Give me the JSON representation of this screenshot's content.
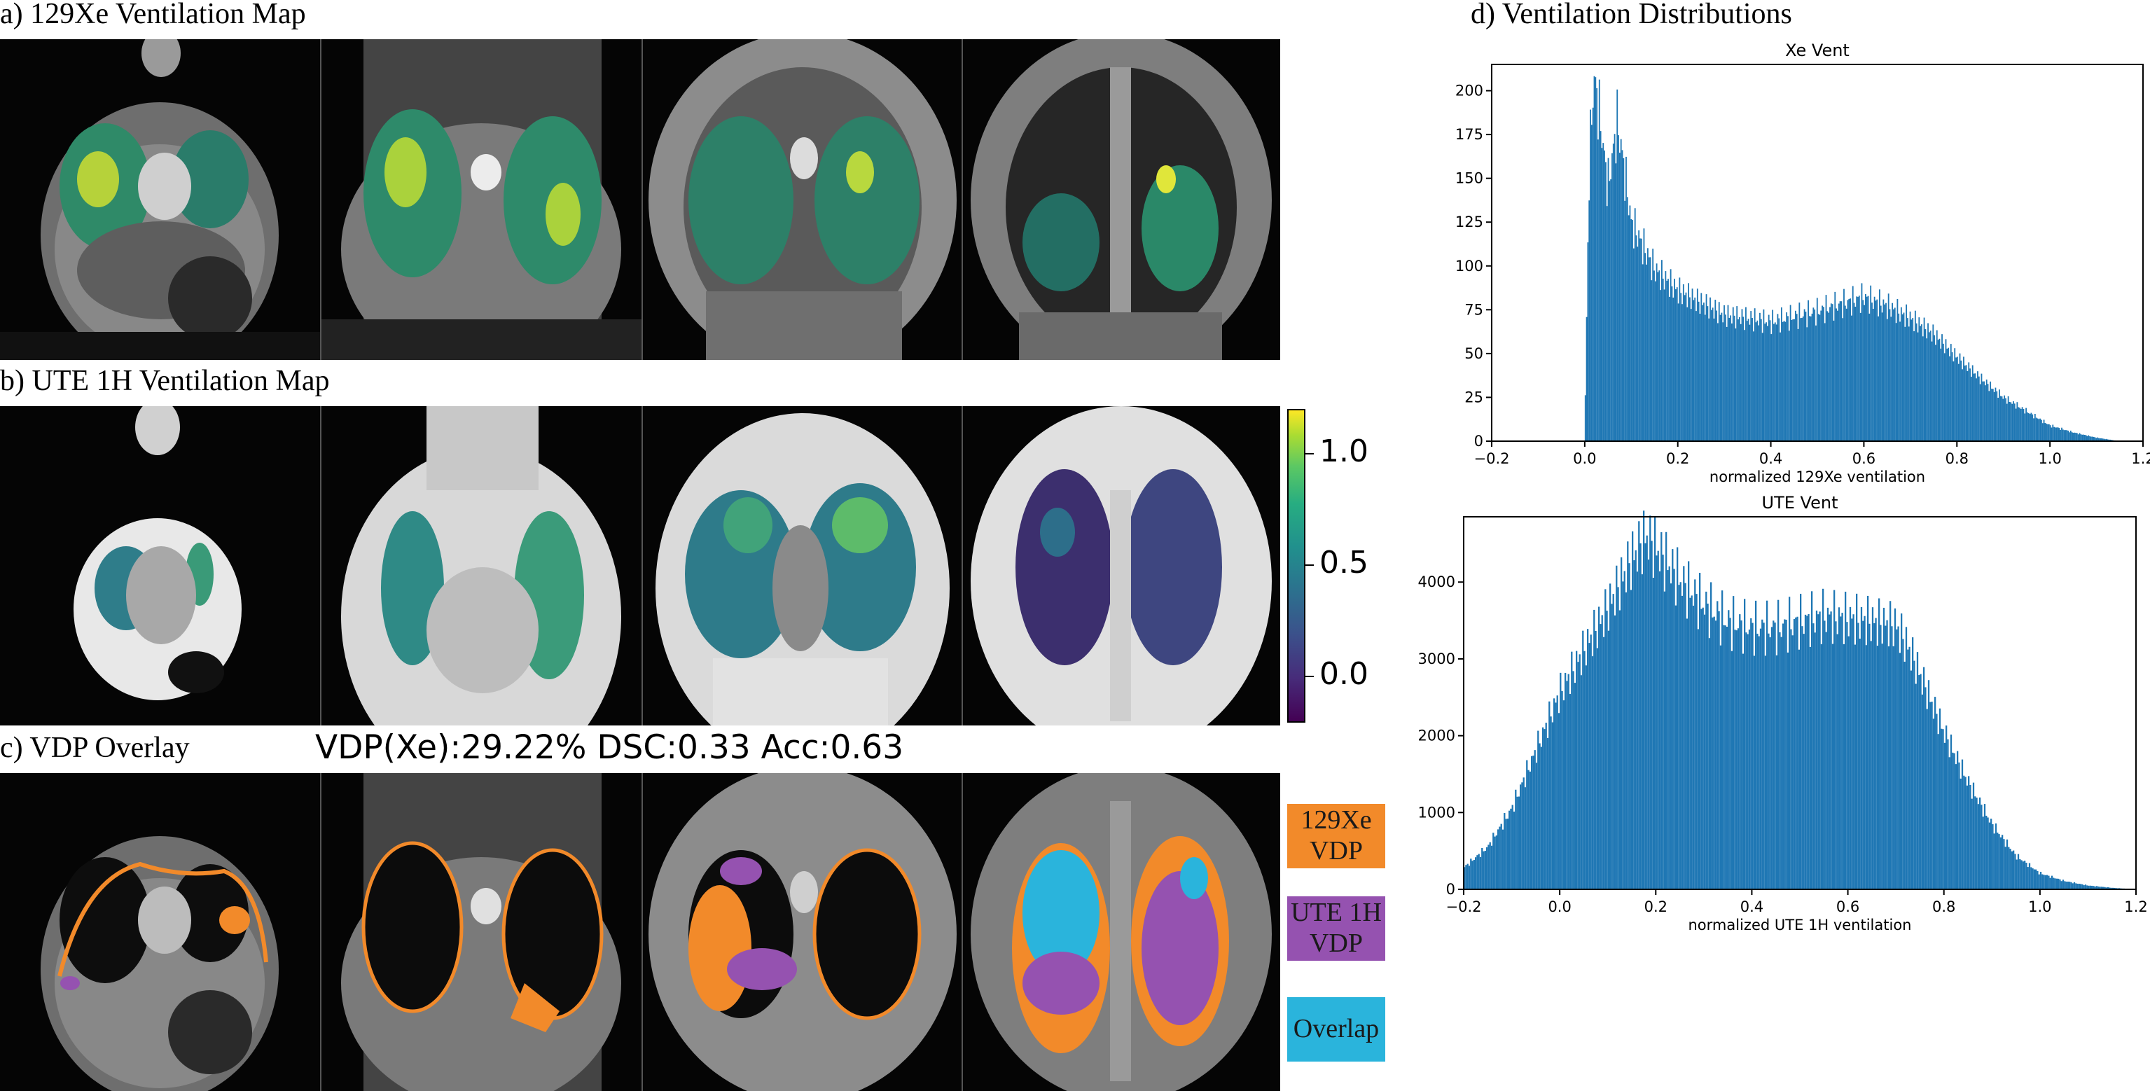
{
  "panels": {
    "a": {
      "title": "a) 129Xe Ventilation Map"
    },
    "b": {
      "title": "b) UTE 1H Ventilation Map"
    },
    "c": {
      "title": "c) VDP Overlay",
      "stats": "VDP(Xe):29.22% DSC:0.33 Acc:0.63"
    },
    "d": {
      "title": "d) Ventilation Distributions"
    }
  },
  "colorbar": {
    "ticks": [
      "1.0",
      "0.5",
      "0.0"
    ],
    "tick_values": [
      1.0,
      0.5,
      0.0
    ],
    "range": [
      -0.2,
      1.2
    ],
    "colormap": "viridis"
  },
  "legend": [
    {
      "label": "129Xe VDP",
      "lines": [
        "129Xe",
        "VDP"
      ],
      "color": "#f28a2a"
    },
    {
      "label": "UTE 1H VDP",
      "lines": [
        "UTE 1H",
        "VDP"
      ],
      "color": "#9552b0"
    },
    {
      "label": "Overlap",
      "lines": [
        "Overlap"
      ],
      "color": "#2ab4dc"
    }
  ],
  "colors": {
    "bars": "#1f77b4",
    "xe_vdp": "#f28a2a",
    "ute_vdp": "#9552b0",
    "overlap": "#2ab4dc"
  },
  "chart_data": [
    {
      "type": "bar",
      "title": "Xe Vent",
      "xlabel": "normalized 129Xe ventilation",
      "ylabel": "",
      "xlim": [
        -0.2,
        1.2
      ],
      "ylim": [
        0,
        215
      ],
      "xticks": [
        -0.2,
        0.0,
        0.2,
        0.4,
        0.6,
        0.8,
        1.0,
        1.2
      ],
      "xtick_labels": [
        "−0.2",
        "0.0",
        "0.2",
        "0.4",
        "0.6",
        "0.8",
        "1.0",
        "1.2"
      ],
      "yticks": [
        0,
        25,
        50,
        75,
        100,
        125,
        150,
        175,
        200
      ],
      "ytick_labels": [
        "0",
        "25",
        "50",
        "75",
        "100",
        "125",
        "150",
        "175",
        "200"
      ],
      "profile": {
        "x": [
          0.0,
          0.01,
          0.02,
          0.03,
          0.05,
          0.07,
          0.08,
          0.1,
          0.15,
          0.2,
          0.3,
          0.4,
          0.5,
          0.55,
          0.6,
          0.65,
          0.7,
          0.75,
          0.8,
          0.85,
          0.9,
          0.95,
          1.0,
          1.05,
          1.1,
          1.15
        ],
        "y": [
          5,
          160,
          208,
          190,
          145,
          182,
          165,
          125,
          98,
          86,
          72,
          68,
          74,
          78,
          82,
          77,
          70,
          61,
          48,
          36,
          25,
          17,
          9,
          5,
          2,
          0
        ]
      }
    },
    {
      "type": "bar",
      "title": "UTE Vent",
      "xlabel": "normalized UTE 1H ventilation",
      "ylabel": "",
      "xlim": [
        -0.2,
        1.2
      ],
      "ylim": [
        0,
        4850
      ],
      "xticks": [
        -0.2,
        0.0,
        0.2,
        0.4,
        0.6,
        0.8,
        1.0,
        1.2
      ],
      "xtick_labels": [
        "−0.2",
        "0.0",
        "0.2",
        "0.4",
        "0.6",
        "0.8",
        "1.0",
        "1.2"
      ],
      "yticks": [
        0,
        1000,
        2000,
        3000,
        4000
      ],
      "ytick_labels": [
        "0",
        "1000",
        "2000",
        "3000",
        "4000"
      ],
      "profile": {
        "x": [
          -0.2,
          -0.15,
          -0.1,
          -0.05,
          0.0,
          0.05,
          0.1,
          0.15,
          0.18,
          0.22,
          0.26,
          0.3,
          0.35,
          0.4,
          0.45,
          0.5,
          0.55,
          0.6,
          0.65,
          0.7,
          0.73,
          0.76,
          0.8,
          0.85,
          0.9,
          0.95,
          1.0,
          1.05,
          1.1,
          1.15,
          1.2
        ],
        "y": [
          280,
          550,
          1050,
          1800,
          2550,
          3100,
          3650,
          4300,
          4600,
          4280,
          3950,
          3700,
          3480,
          3400,
          3400,
          3480,
          3550,
          3520,
          3480,
          3430,
          3100,
          2650,
          2050,
          1400,
          850,
          440,
          210,
          110,
          50,
          20,
          0
        ]
      }
    }
  ]
}
